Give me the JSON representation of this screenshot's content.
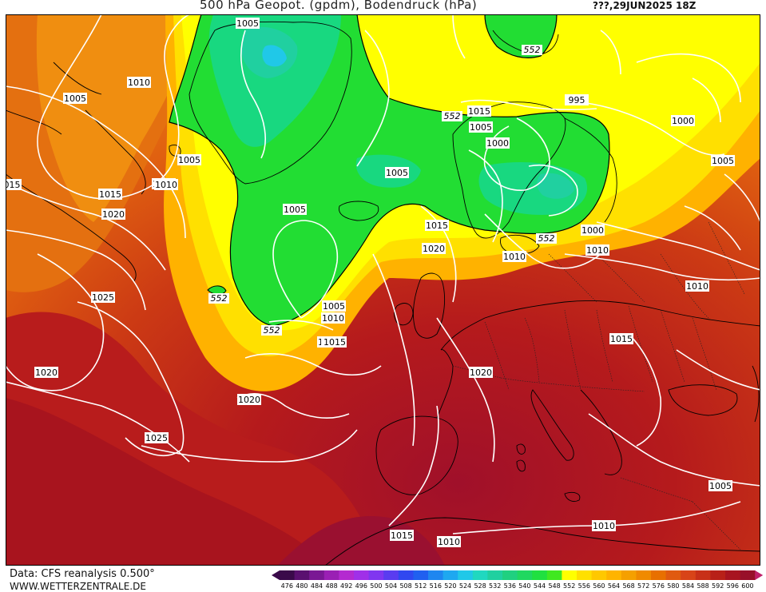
{
  "header": {
    "title": "500 hPa Geopot. (gpdm), Bodendruck (hPa)",
    "date": "???,29JUN2025 18Z"
  },
  "footer": {
    "source": "Data: CFS reanalysis 0.500°",
    "url": "WWW.WETTERZENTRALE.DE"
  },
  "isobar_labels": [
    "1005",
    "1010",
    "1005",
    "1005",
    "1010",
    "1015",
    "1020",
    "1025",
    "1020",
    "1025",
    "1020",
    "1015",
    "1020",
    "1015",
    "1010",
    "1005",
    "1005",
    "1010",
    "1015",
    "1020",
    "1015",
    "1010",
    "1000",
    "995",
    "1000",
    "1005",
    "1000",
    "1005",
    "1010",
    "1015",
    "1005",
    "1010",
    "1015",
    "1010",
    "1005",
    "1010",
    "1015"
  ],
  "geopotential_labels": [
    "552",
    "552",
    "552",
    "552",
    "552"
  ],
  "partial_label": "015",
  "colorbar": {
    "ticks": [
      "476",
      "480",
      "484",
      "488",
      "492",
      "496",
      "500",
      "504",
      "508",
      "512",
      "516",
      "520",
      "524",
      "528",
      "532",
      "536",
      "540",
      "544",
      "548",
      "552",
      "556",
      "560",
      "564",
      "568",
      "572",
      "576",
      "580",
      "584",
      "588",
      "592",
      "596",
      "600"
    ],
    "colors": [
      "#3a0a4a",
      "#5a1070",
      "#7a1894",
      "#9a20b4",
      "#b42ad0",
      "#a030e8",
      "#8036f0",
      "#5a3cf0",
      "#3048f0",
      "#2060f0",
      "#1e86f0",
      "#1ea8f0",
      "#20c8e8",
      "#20d8c0",
      "#20d0a0",
      "#20d080",
      "#20d860",
      "#20e040",
      "#40e820",
      "#ffff00",
      "#ffe000",
      "#ffc800",
      "#ffb400",
      "#f5a000",
      "#f08a00",
      "#e87000",
      "#e05a10",
      "#d84418",
      "#c83018",
      "#b82018",
      "#a81420",
      "#98102a"
    ]
  }
}
